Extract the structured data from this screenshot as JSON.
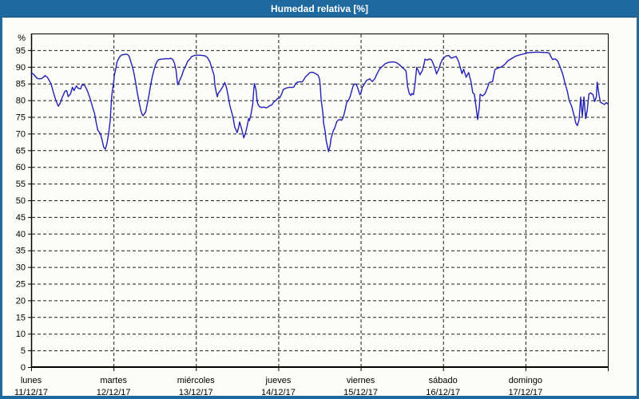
{
  "window": {
    "title": "Humedad relativa [%]",
    "frame_color": "#1e699e",
    "content_bg": "#fcfdf8"
  },
  "chart_data": {
    "type": "line",
    "title": "Humedad relativa [%]",
    "y_unit_label": "%",
    "ylabel": "Humedad relativa",
    "ylim": [
      0,
      100
    ],
    "y_ticks": [
      0,
      5,
      10,
      15,
      20,
      25,
      30,
      35,
      40,
      45,
      50,
      55,
      60,
      65,
      70,
      75,
      80,
      85,
      90,
      95
    ],
    "grid": "on-dashed",
    "legend": "none",
    "line_color": "#2121b4",
    "grid_color": "#1a1a1a",
    "axis_color": "#000000",
    "x_unit": "days since lunes 11/12/17 00:00",
    "xlim": [
      0,
      7
    ],
    "x_categories": [
      {
        "day": "lunes",
        "date": "11/12/17"
      },
      {
        "day": "martes",
        "date": "12/12/17"
      },
      {
        "day": "miércoles",
        "date": "13/12/17"
      },
      {
        "day": "jueves",
        "date": "14/12/17"
      },
      {
        "day": "viernes",
        "date": "15/12/17"
      },
      {
        "day": "sábado",
        "date": "16/12/17"
      },
      {
        "day": "domingo",
        "date": "17/12/17"
      }
    ],
    "series": [
      {
        "name": "Humedad relativa [%]",
        "points": [
          [
            0,
            88.2
          ],
          [
            0.03,
            87.8
          ],
          [
            0.07,
            86.6
          ],
          [
            0.1,
            86.4
          ],
          [
            0.13,
            86.5
          ],
          [
            0.17,
            87.4
          ],
          [
            0.2,
            86.8
          ],
          [
            0.24,
            85
          ],
          [
            0.27,
            82.4
          ],
          [
            0.3,
            80
          ],
          [
            0.33,
            78.2
          ],
          [
            0.35,
            79
          ],
          [
            0.38,
            81
          ],
          [
            0.41,
            82.7
          ],
          [
            0.43,
            82.9
          ],
          [
            0.45,
            81.1
          ],
          [
            0.48,
            82
          ],
          [
            0.5,
            83.9
          ],
          [
            0.52,
            82.9
          ],
          [
            0.55,
            84.3
          ],
          [
            0.57,
            83.6
          ],
          [
            0.6,
            83.4
          ],
          [
            0.62,
            84.7
          ],
          [
            0.65,
            84.4
          ],
          [
            0.67,
            83.5
          ],
          [
            0.69,
            82.3
          ],
          [
            0.72,
            80.2
          ],
          [
            0.74,
            78.4
          ],
          [
            0.77,
            76
          ],
          [
            0.79,
            73.2
          ],
          [
            0.81,
            71
          ],
          [
            0.84,
            70
          ],
          [
            0.86,
            68.2
          ],
          [
            0.88,
            65.9
          ],
          [
            0.9,
            65.3
          ],
          [
            0.92,
            67
          ],
          [
            0.94,
            70
          ],
          [
            0.96,
            74
          ],
          [
            0.97,
            78
          ],
          [
            0.98,
            81.8
          ],
          [
            1,
            85
          ],
          [
            1.01,
            87.5
          ],
          [
            1.03,
            89.7
          ],
          [
            1.04,
            91.3
          ],
          [
            1.06,
            92.4
          ],
          [
            1.08,
            93.2
          ],
          [
            1.1,
            93.6
          ],
          [
            1.13,
            93.7
          ],
          [
            1.15,
            93.8
          ],
          [
            1.17,
            93.7
          ],
          [
            1.19,
            93.2
          ],
          [
            1.21,
            91.5
          ],
          [
            1.23,
            90
          ],
          [
            1.25,
            87.9
          ],
          [
            1.27,
            85
          ],
          [
            1.29,
            82
          ],
          [
            1.31,
            79.5
          ],
          [
            1.33,
            77
          ],
          [
            1.35,
            75.6
          ],
          [
            1.36,
            75.4
          ],
          [
            1.39,
            76.5
          ],
          [
            1.41,
            78.9
          ],
          [
            1.43,
            81.5
          ],
          [
            1.45,
            84.5
          ],
          [
            1.47,
            87
          ],
          [
            1.49,
            89
          ],
          [
            1.51,
            90.6
          ],
          [
            1.53,
            91.7
          ],
          [
            1.55,
            92.2
          ],
          [
            1.58,
            92.3
          ],
          [
            1.61,
            92.4
          ],
          [
            1.64,
            92.5
          ],
          [
            1.67,
            92.4
          ],
          [
            1.69,
            92.6
          ],
          [
            1.72,
            92.2
          ],
          [
            1.74,
            91
          ],
          [
            1.76,
            88.9
          ],
          [
            1.77,
            86.3
          ],
          [
            1.78,
            84.6
          ],
          [
            1.8,
            85.8
          ],
          [
            1.83,
            87.5
          ],
          [
            1.85,
            89
          ],
          [
            1.88,
            90.5
          ],
          [
            1.9,
            91.7
          ],
          [
            1.93,
            92.5
          ],
          [
            1.95,
            93.1
          ],
          [
            1.98,
            93.4
          ],
          [
            2.01,
            93.5
          ],
          [
            2.05,
            93.5
          ],
          [
            2.08,
            93.4
          ],
          [
            2.11,
            93.3
          ],
          [
            2.14,
            92.8
          ],
          [
            2.17,
            91.5
          ],
          [
            2.19,
            89.8
          ],
          [
            2.22,
            87.5
          ],
          [
            2.23,
            84.5
          ],
          [
            2.25,
            82
          ],
          [
            2.26,
            81
          ],
          [
            2.27,
            82
          ],
          [
            2.3,
            83
          ],
          [
            2.33,
            84.2
          ],
          [
            2.35,
            85.3
          ],
          [
            2.37,
            83.9
          ],
          [
            2.39,
            81.5
          ],
          [
            2.41,
            78.6
          ],
          [
            2.43,
            76.8
          ],
          [
            2.45,
            74.9
          ],
          [
            2.47,
            72
          ],
          [
            2.5,
            70.3
          ],
          [
            2.52,
            72
          ],
          [
            2.53,
            73.5
          ],
          [
            2.55,
            71.9
          ],
          [
            2.57,
            69.9
          ],
          [
            2.58,
            68.7
          ],
          [
            2.6,
            70
          ],
          [
            2.62,
            72
          ],
          [
            2.64,
            74.5
          ],
          [
            2.65,
            73.9
          ],
          [
            2.67,
            76
          ],
          [
            2.69,
            79
          ],
          [
            2.7,
            82.5
          ],
          [
            2.71,
            85
          ],
          [
            2.73,
            83
          ],
          [
            2.74,
            80.5
          ],
          [
            2.75,
            79
          ],
          [
            2.77,
            78.1
          ],
          [
            2.8,
            77.8
          ],
          [
            2.82,
            78
          ],
          [
            2.85,
            77.7
          ],
          [
            2.87,
            77.9
          ],
          [
            2.89,
            78.3
          ],
          [
            2.92,
            78.6
          ],
          [
            2.94,
            79.3
          ],
          [
            2.97,
            79.9
          ],
          [
            2.99,
            80.5
          ],
          [
            3.02,
            80.8
          ],
          [
            3.04,
            81.9
          ],
          [
            3.06,
            83.2
          ],
          [
            3.09,
            83.6
          ],
          [
            3.11,
            83.7
          ],
          [
            3.14,
            83.9
          ],
          [
            3.16,
            83.8
          ],
          [
            3.19,
            84
          ],
          [
            3.21,
            85
          ],
          [
            3.23,
            85.4
          ],
          [
            3.26,
            85.5
          ],
          [
            3.29,
            85.5
          ],
          [
            3.31,
            86.2
          ],
          [
            3.33,
            87
          ],
          [
            3.36,
            87.7
          ],
          [
            3.38,
            88.2
          ],
          [
            3.4,
            88.4
          ],
          [
            3.43,
            88.3
          ],
          [
            3.45,
            88
          ],
          [
            3.48,
            87.6
          ],
          [
            3.5,
            86.5
          ],
          [
            3.51,
            84
          ],
          [
            3.52,
            80
          ],
          [
            3.54,
            76.5
          ],
          [
            3.55,
            73
          ],
          [
            3.57,
            70.5
          ],
          [
            3.58,
            68
          ],
          [
            3.6,
            65.8
          ],
          [
            3.61,
            64.6
          ],
          [
            3.63,
            66.5
          ],
          [
            3.64,
            68.5
          ],
          [
            3.66,
            70.2
          ],
          [
            3.67,
            71.1
          ],
          [
            3.68,
            71.3
          ],
          [
            3.7,
            72.8
          ],
          [
            3.71,
            73.6
          ],
          [
            3.73,
            74.1
          ],
          [
            3.75,
            74.2
          ],
          [
            3.77,
            74
          ],
          [
            3.79,
            75
          ],
          [
            3.81,
            77
          ],
          [
            3.83,
            79.3
          ],
          [
            3.85,
            79.9
          ],
          [
            3.87,
            81
          ],
          [
            3.89,
            82.7
          ],
          [
            3.91,
            84.5
          ],
          [
            3.93,
            84.9
          ],
          [
            3.95,
            84.6
          ],
          [
            3.97,
            83.2
          ],
          [
            3.99,
            81.7
          ],
          [
            4,
            81.9
          ],
          [
            4.02,
            83.9
          ],
          [
            4.05,
            85
          ],
          [
            4.07,
            85.9
          ],
          [
            4.11,
            86.4
          ],
          [
            4.14,
            85.6
          ],
          [
            4.17,
            86.4
          ],
          [
            4.2,
            88
          ],
          [
            4.23,
            89.4
          ],
          [
            4.27,
            90.3
          ],
          [
            4.3,
            91
          ],
          [
            4.35,
            91.4
          ],
          [
            4.4,
            91.5
          ],
          [
            4.44,
            91.2
          ],
          [
            4.48,
            90.4
          ],
          [
            4.52,
            89.5
          ],
          [
            4.55,
            88.8
          ],
          [
            4.57,
            84
          ],
          [
            4.59,
            82
          ],
          [
            4.61,
            81.4
          ],
          [
            4.62,
            82
          ],
          [
            4.64,
            81.7
          ],
          [
            4.66,
            85
          ],
          [
            4.68,
            89.8
          ],
          [
            4.7,
            88.8
          ],
          [
            4.72,
            87.6
          ],
          [
            4.75,
            89
          ],
          [
            4.77,
            91
          ],
          [
            4.78,
            92.3
          ],
          [
            4.81,
            92
          ],
          [
            4.83,
            92.4
          ],
          [
            4.86,
            92.1
          ],
          [
            4.88,
            91
          ],
          [
            4.91,
            88.9
          ],
          [
            4.92,
            87.9
          ],
          [
            4.95,
            89.5
          ],
          [
            4.97,
            91
          ],
          [
            4.99,
            92.2
          ],
          [
            5.01,
            92.7
          ],
          [
            5.04,
            93.3
          ],
          [
            5.07,
            93.4
          ],
          [
            5.1,
            92.6
          ],
          [
            5.13,
            92.9
          ],
          [
            5.16,
            93.1
          ],
          [
            5.19,
            91.5
          ],
          [
            5.23,
            88
          ],
          [
            5.25,
            89.3
          ],
          [
            5.28,
            86.9
          ],
          [
            5.31,
            88.3
          ],
          [
            5.34,
            85.4
          ],
          [
            5.36,
            82.3
          ],
          [
            5.38,
            81.8
          ],
          [
            5.4,
            78
          ],
          [
            5.42,
            74.2
          ],
          [
            5.44,
            78
          ],
          [
            5.45,
            81.8
          ],
          [
            5.48,
            81.3
          ],
          [
            5.51,
            82
          ],
          [
            5.54,
            83.8
          ],
          [
            5.56,
            85.3
          ],
          [
            5.6,
            85.6
          ],
          [
            5.63,
            89.2
          ],
          [
            5.67,
            89.7
          ],
          [
            5.71,
            90
          ],
          [
            5.75,
            90.8
          ],
          [
            5.79,
            91.9
          ],
          [
            5.84,
            92.6
          ],
          [
            5.88,
            93.2
          ],
          [
            5.93,
            93.6
          ],
          [
            5.98,
            93.9
          ],
          [
            6.02,
            94.2
          ],
          [
            6.07,
            94.3
          ],
          [
            6.12,
            94.4
          ],
          [
            6.17,
            94.4
          ],
          [
            6.22,
            94.3
          ],
          [
            6.26,
            94.3
          ],
          [
            6.29,
            94.1
          ],
          [
            6.31,
            93
          ],
          [
            6.33,
            92.2
          ],
          [
            6.36,
            92.4
          ],
          [
            6.39,
            91.8
          ],
          [
            6.42,
            90
          ],
          [
            6.45,
            88
          ],
          [
            6.48,
            85.1
          ],
          [
            6.51,
            82.5
          ],
          [
            6.53,
            80
          ],
          [
            6.56,
            78.2
          ],
          [
            6.59,
            75.5
          ],
          [
            6.61,
            73.2
          ],
          [
            6.63,
            72.4
          ],
          [
            6.65,
            74
          ],
          [
            6.67,
            80.9
          ],
          [
            6.69,
            75.2
          ],
          [
            6.71,
            81
          ],
          [
            6.73,
            74.5
          ],
          [
            6.75,
            77
          ],
          [
            6.77,
            81.9
          ],
          [
            6.79,
            82.2
          ],
          [
            6.82,
            81.7
          ],
          [
            6.84,
            79.6
          ],
          [
            6.86,
            81
          ],
          [
            6.87,
            85.4
          ],
          [
            6.89,
            82
          ],
          [
            6.91,
            79.4
          ],
          [
            6.94,
            79
          ],
          [
            6.96,
            78.7
          ],
          [
            6.98,
            79.3
          ],
          [
            7,
            78.9
          ]
        ]
      }
    ]
  }
}
